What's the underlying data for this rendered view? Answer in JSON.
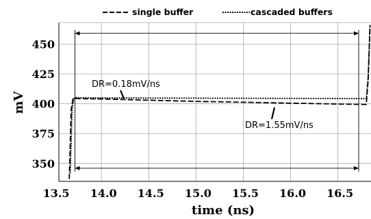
{
  "chart_data": {
    "type": "line",
    "xlabel": "time (ns)",
    "ylabel": "mV",
    "xlim": [
      13.55,
      16.85
    ],
    "ylim": [
      335,
      468
    ],
    "x_ticks": [
      13.5,
      14.0,
      14.5,
      15.0,
      15.5,
      16.0,
      16.5
    ],
    "x_tick_labels": [
      "13.5",
      "14.0",
      "14.5",
      "15.0",
      "15.5",
      "16.0",
      "16.5"
    ],
    "y_ticks": [
      350,
      375,
      400,
      425,
      450
    ],
    "y_tick_labels": [
      "350",
      "375",
      "400",
      "425",
      "450"
    ],
    "grid": true,
    "legend_position": "top",
    "series": [
      {
        "name": "single buffer",
        "style": "dashed",
        "color": "#000000",
        "x": [
          13.66,
          13.68,
          13.7,
          13.72,
          13.75,
          14.0,
          14.5,
          15.0,
          15.5,
          16.0,
          16.5,
          16.8,
          16.82,
          16.84
        ],
        "y": [
          337,
          395,
          404.5,
          404.5,
          404.3,
          404.0,
          403.0,
          402.0,
          401.3,
          400.5,
          399.8,
          399.4,
          420,
          466
        ]
      },
      {
        "name": "cascaded buffers",
        "style": "dotted",
        "color": "#000000",
        "x": [
          13.67,
          13.69,
          13.71,
          13.73,
          13.76,
          14.0,
          14.5,
          15.0,
          15.5,
          16.0,
          16.5,
          16.8,
          16.82,
          16.84
        ],
        "y": [
          342,
          396,
          404.5,
          405.2,
          405.0,
          404.9,
          404.8,
          404.7,
          404.6,
          404.5,
          404.4,
          404.3,
          422,
          466
        ]
      }
    ],
    "annotations": [
      {
        "text": "DR=0.18mV/ns",
        "series": "cascaded buffers"
      },
      {
        "text": "DR=1.55mV/ns",
        "series": "single buffer"
      }
    ],
    "interval_markers": [
      {
        "x_start": 13.72,
        "x_end": 16.72,
        "y": 459
      },
      {
        "x_start": 13.72,
        "x_end": 16.72,
        "y": 346
      }
    ]
  }
}
